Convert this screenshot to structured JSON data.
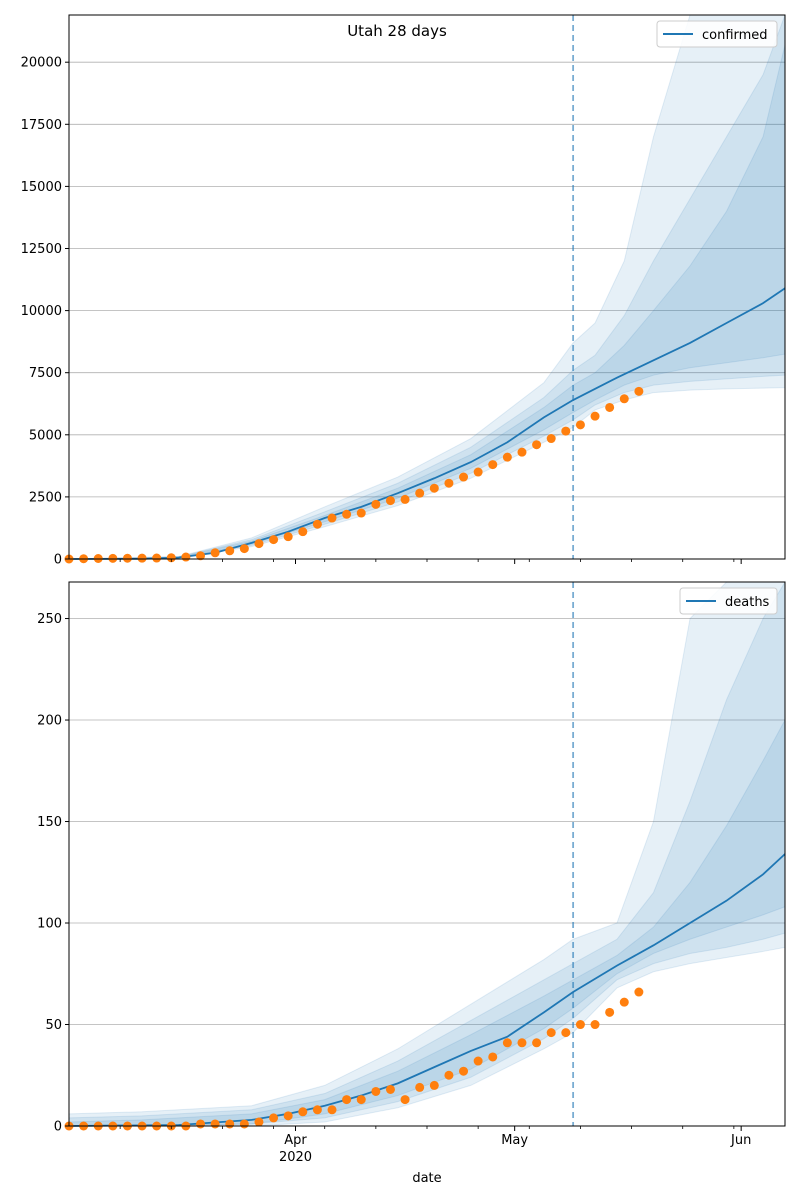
{
  "title": "Utah 28 days",
  "xlabel": "date",
  "colors": {
    "model": "#1f77b4",
    "observed": "#ff7f0e",
    "band": "#1f77b4",
    "grid": "#b0b0b0"
  },
  "x_ticks": [
    {
      "label": "Apr",
      "sublabel": "2020",
      "date": "2020-04-01"
    },
    {
      "label": "May",
      "sublabel": "",
      "date": "2020-05-01"
    },
    {
      "label": "Jun",
      "sublabel": "",
      "date": "2020-06-01"
    }
  ],
  "chart_data": [
    {
      "type": "line",
      "legend": "confirmed",
      "legend_position": "top-right",
      "grid": "horizontal",
      "xlim": [
        "2020-03-01",
        "2020-06-07"
      ],
      "ylim": [
        0,
        21900
      ],
      "yticks": [
        0,
        2500,
        5000,
        7500,
        10000,
        12500,
        15000,
        17500,
        20000
      ],
      "forecast_start": "2020-05-09",
      "model": {
        "x": [
          "2020-03-01",
          "2020-03-11",
          "2020-03-16",
          "2020-03-21",
          "2020-03-26",
          "2020-03-31",
          "2020-04-05",
          "2020-04-10",
          "2020-04-15",
          "2020-04-20",
          "2020-04-25",
          "2020-04-30",
          "2020-05-05",
          "2020-05-09",
          "2020-05-15",
          "2020-05-20",
          "2020-05-25",
          "2020-05-30",
          "2020-06-04",
          "2020-06-07"
        ],
        "y": [
          0,
          5,
          60,
          250,
          650,
          1100,
          1650,
          2100,
          2650,
          3250,
          3900,
          4700,
          5700,
          6400,
          7300,
          8000,
          8700,
          9500,
          10300,
          10900
        ]
      },
      "bands": [
        {
          "x": [
            "2020-03-01",
            "2020-03-16",
            "2020-03-26",
            "2020-04-05",
            "2020-04-15",
            "2020-04-25",
            "2020-05-05",
            "2020-05-09",
            "2020-05-12",
            "2020-05-16",
            "2020-05-20",
            "2020-05-25",
            "2020-05-30",
            "2020-06-04",
            "2020-06-07"
          ],
          "lower": [
            0,
            40,
            500,
            1300,
            2150,
            3250,
            4700,
            5300,
            6000,
            6400,
            6700,
            6800,
            6850,
            6880,
            6900
          ],
          "upper": [
            0,
            100,
            850,
            2100,
            3300,
            4850,
            7100,
            8700,
            9500,
            12000,
            17000,
            21900,
            21900,
            21900,
            21900
          ]
        },
        {
          "x": [
            "2020-03-01",
            "2020-03-16",
            "2020-03-26",
            "2020-04-05",
            "2020-04-15",
            "2020-04-25",
            "2020-05-05",
            "2020-05-09",
            "2020-05-12",
            "2020-05-16",
            "2020-05-20",
            "2020-05-25",
            "2020-05-30",
            "2020-06-04",
            "2020-06-07"
          ],
          "lower": [
            0,
            45,
            550,
            1400,
            2300,
            3450,
            4950,
            5600,
            6200,
            6700,
            7000,
            7150,
            7250,
            7350,
            7400
          ],
          "upper": [
            0,
            85,
            780,
            1900,
            3050,
            4500,
            6500,
            7600,
            8200,
            9800,
            12000,
            14500,
            17000,
            19500,
            21900
          ]
        },
        {
          "x": [
            "2020-03-01",
            "2020-03-16",
            "2020-03-26",
            "2020-04-05",
            "2020-04-15",
            "2020-04-25",
            "2020-05-05",
            "2020-05-09",
            "2020-05-12",
            "2020-05-16",
            "2020-05-20",
            "2020-05-25",
            "2020-05-30",
            "2020-06-04",
            "2020-06-07"
          ],
          "lower": [
            0,
            50,
            600,
            1500,
            2450,
            3650,
            5200,
            5900,
            6400,
            7000,
            7400,
            7700,
            7900,
            8100,
            8250
          ],
          "upper": [
            0,
            75,
            720,
            1750,
            2850,
            4200,
            6100,
            7000,
            7500,
            8600,
            10000,
            11800,
            14000,
            17000,
            20700
          ]
        }
      ],
      "observed": {
        "x": [
          "2020-03-01",
          "2020-03-03",
          "2020-03-05",
          "2020-03-07",
          "2020-03-09",
          "2020-03-11",
          "2020-03-13",
          "2020-03-15",
          "2020-03-17",
          "2020-03-19",
          "2020-03-21",
          "2020-03-23",
          "2020-03-25",
          "2020-03-27",
          "2020-03-29",
          "2020-03-31",
          "2020-04-02",
          "2020-04-04",
          "2020-04-06",
          "2020-04-08",
          "2020-04-10",
          "2020-04-12",
          "2020-04-14",
          "2020-04-16",
          "2020-04-18",
          "2020-04-20",
          "2020-04-22",
          "2020-04-24",
          "2020-04-26",
          "2020-04-28",
          "2020-04-30",
          "2020-05-02",
          "2020-05-04",
          "2020-05-06",
          "2020-05-08",
          "2020-05-10",
          "2020-05-12",
          "2020-05-14",
          "2020-05-16",
          "2020-05-18"
        ],
        "y": [
          0,
          10,
          20,
          25,
          30,
          35,
          40,
          50,
          80,
          130,
          250,
          330,
          420,
          620,
          780,
          900,
          1100,
          1400,
          1650,
          1800,
          1850,
          2200,
          2350,
          2400,
          2650,
          2850,
          3050,
          3300,
          3500,
          3800,
          4100,
          4300,
          4600,
          4850,
          5150,
          5400,
          5750,
          6100,
          6450,
          6750
        ]
      }
    },
    {
      "type": "line",
      "legend": "deaths",
      "legend_position": "top-right",
      "grid": "horizontal",
      "xlim": [
        "2020-03-01",
        "2020-06-07"
      ],
      "ylim": [
        0,
        268
      ],
      "yticks": [
        0,
        50,
        100,
        150,
        200,
        250
      ],
      "forecast_start": "2020-05-09",
      "model": {
        "x": [
          "2020-03-01",
          "2020-03-16",
          "2020-03-26",
          "2020-03-31",
          "2020-04-05",
          "2020-04-10",
          "2020-04-15",
          "2020-04-20",
          "2020-04-25",
          "2020-04-30",
          "2020-05-05",
          "2020-05-09",
          "2020-05-15",
          "2020-05-20",
          "2020-05-25",
          "2020-05-30",
          "2020-06-04",
          "2020-06-07"
        ],
        "y": [
          0,
          0.5,
          3,
          6,
          10,
          15,
          21,
          29,
          37,
          44,
          56,
          66,
          79,
          89,
          100,
          111,
          124,
          134
        ]
      },
      "bands": [
        {
          "x": [
            "2020-03-01",
            "2020-03-11",
            "2020-03-26",
            "2020-04-05",
            "2020-04-15",
            "2020-04-25",
            "2020-05-05",
            "2020-05-09",
            "2020-05-15",
            "2020-05-20",
            "2020-05-25",
            "2020-05-30",
            "2020-06-04",
            "2020-06-07"
          ],
          "lower": [
            0,
            0,
            0,
            2,
            9,
            20,
            38,
            46,
            68,
            76,
            80,
            83,
            86,
            88
          ],
          "upper": [
            6,
            7,
            10,
            20,
            38,
            60,
            82,
            92,
            100,
            150,
            250,
            268,
            268,
            268
          ]
        },
        {
          "x": [
            "2020-03-01",
            "2020-03-11",
            "2020-03-26",
            "2020-04-05",
            "2020-04-15",
            "2020-04-25",
            "2020-05-05",
            "2020-05-09",
            "2020-05-15",
            "2020-05-20",
            "2020-05-25",
            "2020-05-30",
            "2020-06-04",
            "2020-06-07"
          ],
          "lower": [
            0,
            0,
            1,
            4,
            12,
            24,
            43,
            53,
            72,
            80,
            85,
            88,
            92,
            95
          ],
          "upper": [
            4,
            5,
            8,
            16,
            32,
            52,
            72,
            80,
            92,
            115,
            160,
            210,
            250,
            268
          ]
        },
        {
          "x": [
            "2020-03-01",
            "2020-03-11",
            "2020-03-26",
            "2020-04-05",
            "2020-04-15",
            "2020-04-25",
            "2020-05-05",
            "2020-05-09",
            "2020-05-15",
            "2020-05-20",
            "2020-05-25",
            "2020-05-30",
            "2020-06-04",
            "2020-06-07"
          ],
          "lower": [
            0,
            0,
            1,
            6,
            15,
            28,
            48,
            58,
            75,
            85,
            92,
            98,
            104,
            108
          ],
          "upper": [
            2,
            3,
            6,
            13,
            27,
            45,
            64,
            72,
            84,
            98,
            120,
            148,
            180,
            200
          ]
        }
      ],
      "observed": {
        "x": [
          "2020-03-01",
          "2020-03-03",
          "2020-03-05",
          "2020-03-07",
          "2020-03-09",
          "2020-03-11",
          "2020-03-13",
          "2020-03-15",
          "2020-03-17",
          "2020-03-19",
          "2020-03-21",
          "2020-03-23",
          "2020-03-25",
          "2020-03-27",
          "2020-03-29",
          "2020-03-31",
          "2020-04-02",
          "2020-04-04",
          "2020-04-06",
          "2020-04-08",
          "2020-04-10",
          "2020-04-12",
          "2020-04-14",
          "2020-04-16",
          "2020-04-18",
          "2020-04-20",
          "2020-04-22",
          "2020-04-24",
          "2020-04-26",
          "2020-04-28",
          "2020-04-30",
          "2020-05-02",
          "2020-05-04",
          "2020-05-06",
          "2020-05-08",
          "2020-05-10",
          "2020-05-12",
          "2020-05-14",
          "2020-05-16",
          "2020-05-18"
        ],
        "y": [
          0,
          0,
          0,
          0,
          0,
          0,
          0,
          0,
          0,
          1,
          1,
          1,
          1,
          2,
          4,
          5,
          7,
          8,
          8,
          13,
          13,
          17,
          18,
          13,
          19,
          20,
          25,
          27,
          32,
          34,
          41,
          41,
          41,
          46,
          46,
          50,
          50,
          56,
          61,
          66
        ]
      }
    }
  ]
}
